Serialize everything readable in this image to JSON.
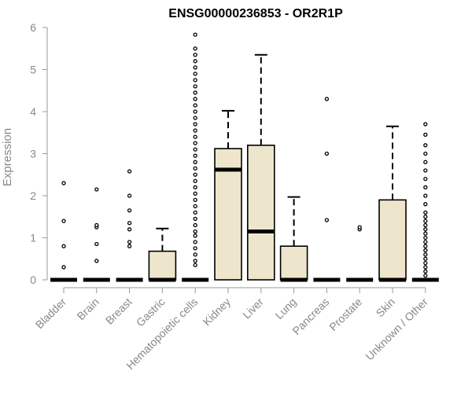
{
  "chart_data": {
    "type": "box",
    "title": "ENSG00000236853 - OR2R1P",
    "xlabel": "",
    "ylabel": "Expression",
    "ylim": [
      0,
      6
    ],
    "yticks": [
      "0",
      "1",
      "2",
      "3",
      "4",
      "5",
      "6"
    ],
    "grid": false,
    "legend": "none",
    "box_fill": "#EDE6CC",
    "box_stroke": "#000000",
    "categories": [
      "Bladder",
      "Brain",
      "Breast",
      "Gastric",
      "Hematopoietic cells",
      "Kidney",
      "Liver",
      "Lung",
      "Pancreas",
      "Prostate",
      "Skin",
      "Unknown / Other"
    ],
    "boxes": [
      {
        "category": "Bladder",
        "q1": 0,
        "median": 0,
        "q3": 0,
        "whisker_low": 0,
        "whisker_high": 0,
        "outliers": [
          0.3,
          0.8,
          1.4,
          2.3
        ]
      },
      {
        "category": "Brain",
        "q1": 0,
        "median": 0,
        "q3": 0,
        "whisker_low": 0,
        "whisker_high": 0,
        "outliers": [
          0.45,
          0.85,
          1.25,
          1.3,
          2.15
        ]
      },
      {
        "category": "Breast",
        "q1": 0,
        "median": 0,
        "q3": 0,
        "whisker_low": 0,
        "whisker_high": 0,
        "outliers": [
          0.8,
          0.9,
          1.2,
          1.35,
          1.65,
          2.0,
          2.58
        ]
      },
      {
        "category": "Gastric",
        "q1": 0,
        "median": 0,
        "q3": 0.68,
        "whisker_low": 0,
        "whisker_high": 1.22,
        "outliers": []
      },
      {
        "category": "Hematopoietic cells",
        "q1": 0,
        "median": 0,
        "q3": 0,
        "whisker_low": 0,
        "whisker_high": 0,
        "outliers": [
          0.35,
          0.45,
          0.6,
          0.75,
          0.9,
          1.05,
          1.15,
          1.3,
          1.45,
          1.6,
          1.75,
          1.9,
          2.05,
          2.2,
          2.35,
          2.5,
          2.65,
          2.8,
          2.95,
          3.1,
          3.25,
          3.4,
          3.55,
          3.7,
          3.85,
          4.0,
          4.15,
          4.3,
          4.45,
          4.6,
          4.75,
          4.9,
          5.05,
          5.2,
          5.35,
          5.5,
          5.83
        ]
      },
      {
        "category": "Kidney",
        "q1": 0,
        "median": 2.62,
        "q3": 3.12,
        "whisker_low": 0,
        "whisker_high": 4.02,
        "outliers": []
      },
      {
        "category": "Liver",
        "q1": 0,
        "median": 1.15,
        "q3": 3.2,
        "whisker_low": 0,
        "whisker_high": 5.35,
        "outliers": []
      },
      {
        "category": "Lung",
        "q1": 0,
        "median": 0,
        "q3": 0.8,
        "whisker_low": 0,
        "whisker_high": 1.97,
        "outliers": []
      },
      {
        "category": "Pancreas",
        "q1": 0,
        "median": 0,
        "q3": 0,
        "whisker_low": 0,
        "whisker_high": 0,
        "outliers": [
          1.42,
          3.0,
          4.3
        ]
      },
      {
        "category": "Prostate",
        "q1": 0,
        "median": 0,
        "q3": 0,
        "whisker_low": 0,
        "whisker_high": 0,
        "outliers": [
          1.2,
          1.25
        ]
      },
      {
        "category": "Skin",
        "q1": 0,
        "median": 0,
        "q3": 1.9,
        "whisker_low": 0,
        "whisker_high": 3.65,
        "outliers": []
      },
      {
        "category": "Unknown / Other",
        "q1": 0,
        "median": 0,
        "q3": 0,
        "whisker_low": 0,
        "whisker_high": 0,
        "outliers": [
          0.1,
          0.2,
          0.3,
          0.4,
          0.5,
          0.6,
          0.7,
          0.8,
          0.9,
          1.0,
          1.1,
          1.2,
          1.3,
          1.4,
          1.5,
          1.6,
          1.8,
          2.0,
          2.2,
          2.4,
          2.6,
          2.8,
          3.0,
          3.2,
          3.45,
          3.7
        ]
      }
    ]
  }
}
